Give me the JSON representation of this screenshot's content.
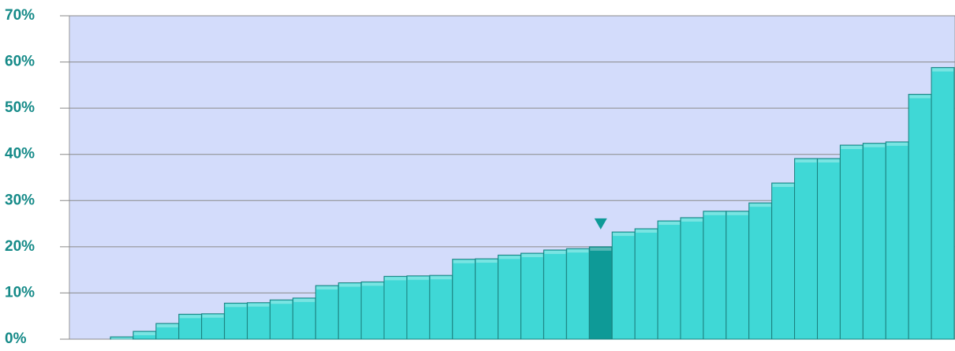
{
  "chart_data": {
    "type": "bar",
    "categories": [
      null,
      null,
      null,
      null,
      null,
      null,
      null,
      null,
      null,
      null,
      null,
      null,
      null,
      null,
      null,
      null,
      null,
      null,
      null,
      null,
      null,
      null,
      null,
      null,
      null,
      null,
      null,
      null,
      null,
      null,
      null,
      null,
      null,
      null,
      null,
      null,
      null
    ],
    "values": [
      0.5,
      1.7,
      3.4,
      5.4,
      5.5,
      7.8,
      7.9,
      8.5,
      8.9,
      11.6,
      12.2,
      12.4,
      13.6,
      13.7,
      13.8,
      17.3,
      17.4,
      18.2,
      18.6,
      19.3,
      19.6,
      20.0,
      23.2,
      23.9,
      25.6,
      26.3,
      27.7,
      27.7,
      29.5,
      33.8,
      39.1,
      39.1,
      42.0,
      42.4,
      42.7,
      53.0,
      58.8
    ],
    "color": "#3fd8d6",
    "highlight": {
      "index": 21,
      "color": "#0e9a97"
    },
    "ylim": [
      0,
      70
    ],
    "yticks": [
      {
        "value": 0,
        "label": "0%"
      },
      {
        "value": 10,
        "label": "10%"
      },
      {
        "value": 20,
        "label": "20%"
      },
      {
        "value": 30,
        "label": "30%"
      },
      {
        "value": 40,
        "label": "40%"
      },
      {
        "value": 50,
        "label": "50%"
      },
      {
        "value": 60,
        "label": "60%"
      },
      {
        "value": 70,
        "label": "70%"
      }
    ],
    "grid": true
  }
}
